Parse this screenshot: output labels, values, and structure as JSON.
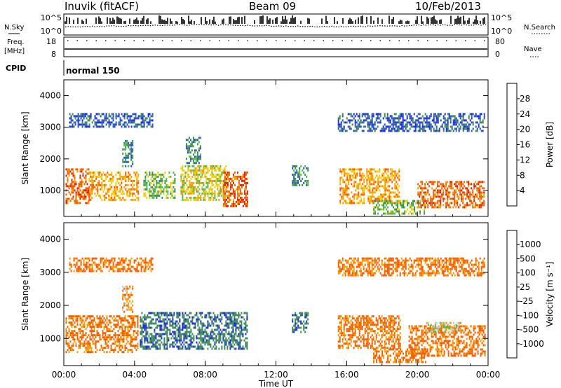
{
  "header": {
    "title": "Inuvik (fitACF)",
    "beam": "Beam 09",
    "date": "10/Feb/2013"
  },
  "strips": {
    "nsky_label": "N.Sky",
    "nsky_ticks": [
      "10^5",
      "10^0"
    ],
    "nsearch_label": "N.Search",
    "nsearch_ticks": [
      "10^5",
      "10^0"
    ],
    "freq_label": "Freq.",
    "freq_unit": "[MHz]",
    "freq_ticks": [
      "18",
      "8"
    ],
    "nave_label": "Nave",
    "nave_ticks": [
      "80",
      "0"
    ],
    "cpid_label": "CPID",
    "cpid_value": "normal 150"
  },
  "chart_data": [
    {
      "type": "heatmap",
      "panel": "power",
      "xlabel": "Time UT",
      "ylabel": "Slant Range [km]",
      "xlim": [
        0,
        24
      ],
      "ylim": [
        180,
        4500
      ],
      "x_ticks": [
        "00:00",
        "04:00",
        "08:00",
        "12:00",
        "16:00",
        "20:00",
        "00:00"
      ],
      "y_ticks": [
        "1000",
        "2000",
        "3000",
        "4000"
      ],
      "colorbar": {
        "label": "Power [dB]",
        "ticks": [
          "4",
          "8",
          "12",
          "16",
          "20",
          "24",
          "28"
        ],
        "colors": [
          "#1a2be0",
          "#2a55b8",
          "#3f8a5a",
          "#55b848",
          "#f0d000",
          "#f5a000",
          "#f06000",
          "#e02000"
        ]
      },
      "echo_regions": [
        {
          "t": [
            0.1,
            1.4
          ],
          "range": [
            600,
            1700
          ],
          "level": 6
        },
        {
          "t": [
            1.4,
            4.2
          ],
          "range": [
            700,
            1600
          ],
          "level": 5
        },
        {
          "t": [
            3.3,
            3.9
          ],
          "range": [
            1800,
            2600
          ],
          "level": 2
        },
        {
          "t": [
            4.5,
            6.3
          ],
          "range": [
            800,
            1600
          ],
          "level": 3
        },
        {
          "t": [
            6.6,
            9.2
          ],
          "range": [
            700,
            1800
          ],
          "level": 4
        },
        {
          "t": [
            6.9,
            7.7
          ],
          "range": [
            1900,
            2700
          ],
          "level": 2
        },
        {
          "t": [
            9.0,
            10.4
          ],
          "range": [
            500,
            1600
          ],
          "level": 6
        },
        {
          "t": [
            12.9,
            13.8
          ],
          "range": [
            1200,
            1800
          ],
          "level": 2
        },
        {
          "t": [
            15.6,
            19.0
          ],
          "range": [
            600,
            1700
          ],
          "level": 5
        },
        {
          "t": [
            17.5,
            20.5
          ],
          "range": [
            300,
            700
          ],
          "level": 3
        },
        {
          "t": [
            20.0,
            23.8
          ],
          "range": [
            500,
            1300
          ],
          "level": 6
        },
        {
          "t": [
            0.3,
            5.0
          ],
          "range": [
            3050,
            3450
          ],
          "level": 1
        },
        {
          "t": [
            15.5,
            23.8
          ],
          "range": [
            2900,
            3450
          ],
          "level": 1
        }
      ]
    },
    {
      "type": "heatmap",
      "panel": "velocity",
      "xlabel": "Time UT",
      "ylabel": "Slant Range [km]",
      "xlim": [
        0,
        24
      ],
      "ylim": [
        180,
        4500
      ],
      "x_ticks": [
        "00:00",
        "04:00",
        "08:00",
        "12:00",
        "16:00",
        "20:00",
        "00:00"
      ],
      "y_ticks": [
        "1000",
        "2000",
        "3000",
        "4000"
      ],
      "colorbar": {
        "label": "Velocity [m s⁻¹]",
        "ticks": [
          "1000",
          "500",
          "100",
          "25",
          "-25",
          "-100",
          "-500",
          "-1000"
        ],
        "colors": [
          "#1a2be0",
          "#3f8a5a",
          "#3f8a5a",
          "#55b848",
          "#c8c8c8",
          "#f5a000",
          "#f06000",
          "#f06000",
          "#e02000"
        ]
      },
      "echo_regions": [
        {
          "t": [
            0.1,
            4.2
          ],
          "range": [
            600,
            1700
          ],
          "level": 6
        },
        {
          "t": [
            3.3,
            3.9
          ],
          "range": [
            1800,
            2600
          ],
          "level": 5
        },
        {
          "t": [
            4.3,
            10.4
          ],
          "range": [
            700,
            1800
          ],
          "level": 1
        },
        {
          "t": [
            12.9,
            13.8
          ],
          "range": [
            1200,
            1800
          ],
          "level": 1
        },
        {
          "t": [
            15.5,
            19.0
          ],
          "range": [
            700,
            1700
          ],
          "level": 6
        },
        {
          "t": [
            17.5,
            20.5
          ],
          "range": [
            300,
            700
          ],
          "level": 6
        },
        {
          "t": [
            19.5,
            23.8
          ],
          "range": [
            500,
            1400
          ],
          "level": 6
        },
        {
          "t": [
            20.5,
            22.5
          ],
          "range": [
            1200,
            1500
          ],
          "level": 4
        },
        {
          "t": [
            0.3,
            5.0
          ],
          "range": [
            3050,
            3450
          ],
          "level": 6
        },
        {
          "t": [
            15.5,
            23.8
          ],
          "range": [
            2900,
            3450
          ],
          "level": 6
        }
      ]
    }
  ]
}
